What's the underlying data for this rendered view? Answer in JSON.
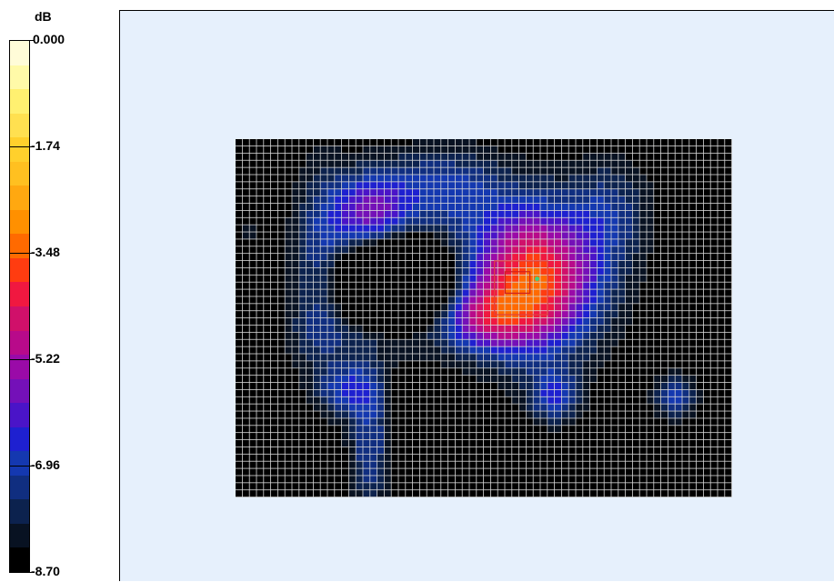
{
  "chart_data": {
    "type": "heatmap",
    "colorbar": {
      "unit": "dB",
      "ticks": [
        "0.000",
        "-1.74",
        "-3.48",
        "-5.22",
        "-6.96",
        "-8.70"
      ],
      "range": [
        -8.7,
        0.0
      ],
      "colors": [
        "#fffcd8",
        "#fffaa8",
        "#fff070",
        "#ffe050",
        "#ffd02c",
        "#ffc020",
        "#ffa810",
        "#ff9000",
        "#ff6a00",
        "#ff3c10",
        "#f01840",
        "#d0106a",
        "#b80a8a",
        "#9a0aa8",
        "#7410b8",
        "#4a14c8",
        "#1e20d0",
        "#1438b0",
        "#102e80",
        "#0c224e",
        "#081222",
        "#000000"
      ]
    },
    "grid_size": [
      70,
      50
    ],
    "peaks": [
      {
        "x": 42.0,
        "y": 19.5,
        "sigma_x": 6.5,
        "sigma_y": 7.0,
        "amp": 5.2
      },
      {
        "x": 35.5,
        "y": 25.0,
        "sigma_x": 4.5,
        "sigma_y": 3.0,
        "amp": 2.2
      },
      {
        "x": 19.0,
        "y": 10.5,
        "sigma_x": 4.0,
        "sigma_y": 4.0,
        "amp": 2.8
      },
      {
        "x": 29.0,
        "y": 7.0,
        "sigma_x": 6.0,
        "sigma_y": 4.0,
        "amp": 1.7
      },
      {
        "x": 12.0,
        "y": 18.0,
        "sigma_x": 3.0,
        "sigma_y": 10.0,
        "amp": 1.4
      },
      {
        "x": 16.0,
        "y": 35.0,
        "sigma_x": 3.0,
        "sigma_y": 2.5,
        "amp": 1.8
      },
      {
        "x": 19.0,
        "y": 43.0,
        "sigma_x": 2.0,
        "sigma_y": 7.0,
        "amp": 1.6
      },
      {
        "x": 45.0,
        "y": 36.0,
        "sigma_x": 2.5,
        "sigma_y": 2.5,
        "amp": 2.0
      },
      {
        "x": 62.0,
        "y": 36.0,
        "sigma_x": 2.0,
        "sigma_y": 2.0,
        "amp": 2.0
      },
      {
        "x": 53.0,
        "y": 10.0,
        "sigma_x": 4.0,
        "sigma_y": 5.0,
        "amp": 1.2
      },
      {
        "x": 2.0,
        "y": 13.0,
        "sigma_x": 1.0,
        "sigma_y": 1.0,
        "amp": 0.7
      },
      {
        "x": 20.0,
        "y": 27.0,
        "sigma_x": 8.0,
        "sigma_y": 3.0,
        "amp": 0.9
      }
    ],
    "holes": [
      {
        "x": 22.5,
        "y": 20.0,
        "sigma_x": 4.5,
        "sigma_y": 3.5,
        "amp": 6.0
      }
    ],
    "markers": [
      {
        "type": "rect",
        "x1": 36.5,
        "y1": 17.0,
        "x2": 44.0,
        "y2": 24.5,
        "color": "#e04040"
      },
      {
        "type": "rect",
        "x1": 38.0,
        "y1": 18.5,
        "x2": 41.5,
        "y2": 21.5,
        "color": "#d02020"
      },
      {
        "type": "point",
        "x": 42.5,
        "y": 19.5,
        "color": "#40d080"
      }
    ]
  }
}
